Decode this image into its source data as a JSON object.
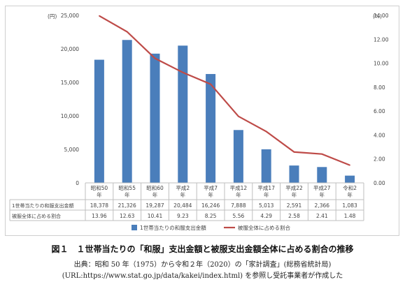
{
  "chart_data": {
    "type": "bar+line",
    "categories": [
      [
        "昭和50",
        "年"
      ],
      [
        "昭和55",
        "年"
      ],
      [
        "昭和60",
        "年"
      ],
      [
        "平成2",
        "年"
      ],
      [
        "平成7",
        "年"
      ],
      [
        "平成12",
        "年"
      ],
      [
        "平成17",
        "年"
      ],
      [
        "平成22",
        "年"
      ],
      [
        "平成27",
        "年"
      ],
      [
        "令和2",
        "年"
      ]
    ],
    "series": [
      {
        "name": "1世帯当たりの和服支出金額",
        "type": "bar",
        "axis": "left",
        "values": [
          18378,
          21326,
          19287,
          20484,
          16246,
          7888,
          5013,
          2591,
          2366,
          1083
        ],
        "labels": [
          "18,378",
          "21,326",
          "19,287",
          "20,484",
          "16,246",
          "7,888",
          "5,013",
          "2,591",
          "2,366",
          "1,083"
        ]
      },
      {
        "name": "被服全体に占める割合",
        "type": "line",
        "axis": "right",
        "values": [
          13.96,
          12.63,
          10.41,
          9.23,
          8.25,
          5.56,
          4.29,
          2.58,
          2.41,
          1.48
        ],
        "labels": [
          "13.96",
          "12.63",
          "10.41",
          "9.23",
          "8.25",
          "5.56",
          "4.29",
          "2.58",
          "2.41",
          "1.48"
        ]
      }
    ],
    "left_axis": {
      "unit": "(円)",
      "ylim": [
        0,
        25000
      ],
      "ticks": [
        "0",
        "5,000",
        "10,000",
        "15,000",
        "20,000",
        "25,000"
      ]
    },
    "right_axis": {
      "unit": "(%)",
      "ylim": [
        0,
        14
      ],
      "ticks": [
        "0.00",
        "2.00",
        "4.00",
        "6.00",
        "8.00",
        "10.00",
        "12.00",
        "14.00"
      ]
    },
    "table_rows": [
      "1世帯当たりの和服支出金額",
      "被服全体に占める割合"
    ],
    "colors": {
      "bar": "#4a7ebb",
      "line": "#be4b48",
      "axis": "#bfbfbf"
    },
    "grid": false,
    "legend_position": "bottom"
  },
  "caption": {
    "title": "図１　１世帯当たりの「和服」支出金額と被服支出金額全体に占める割合の推移",
    "source_line1": "出典：昭和 50 年（1975）から令和２年（2020）の「家計調査」(総務省統計局)",
    "source_line2": "(URL:https://www.stat.go.jp/data/kakei/index.html) を参照し受託事業者が作成した"
  }
}
